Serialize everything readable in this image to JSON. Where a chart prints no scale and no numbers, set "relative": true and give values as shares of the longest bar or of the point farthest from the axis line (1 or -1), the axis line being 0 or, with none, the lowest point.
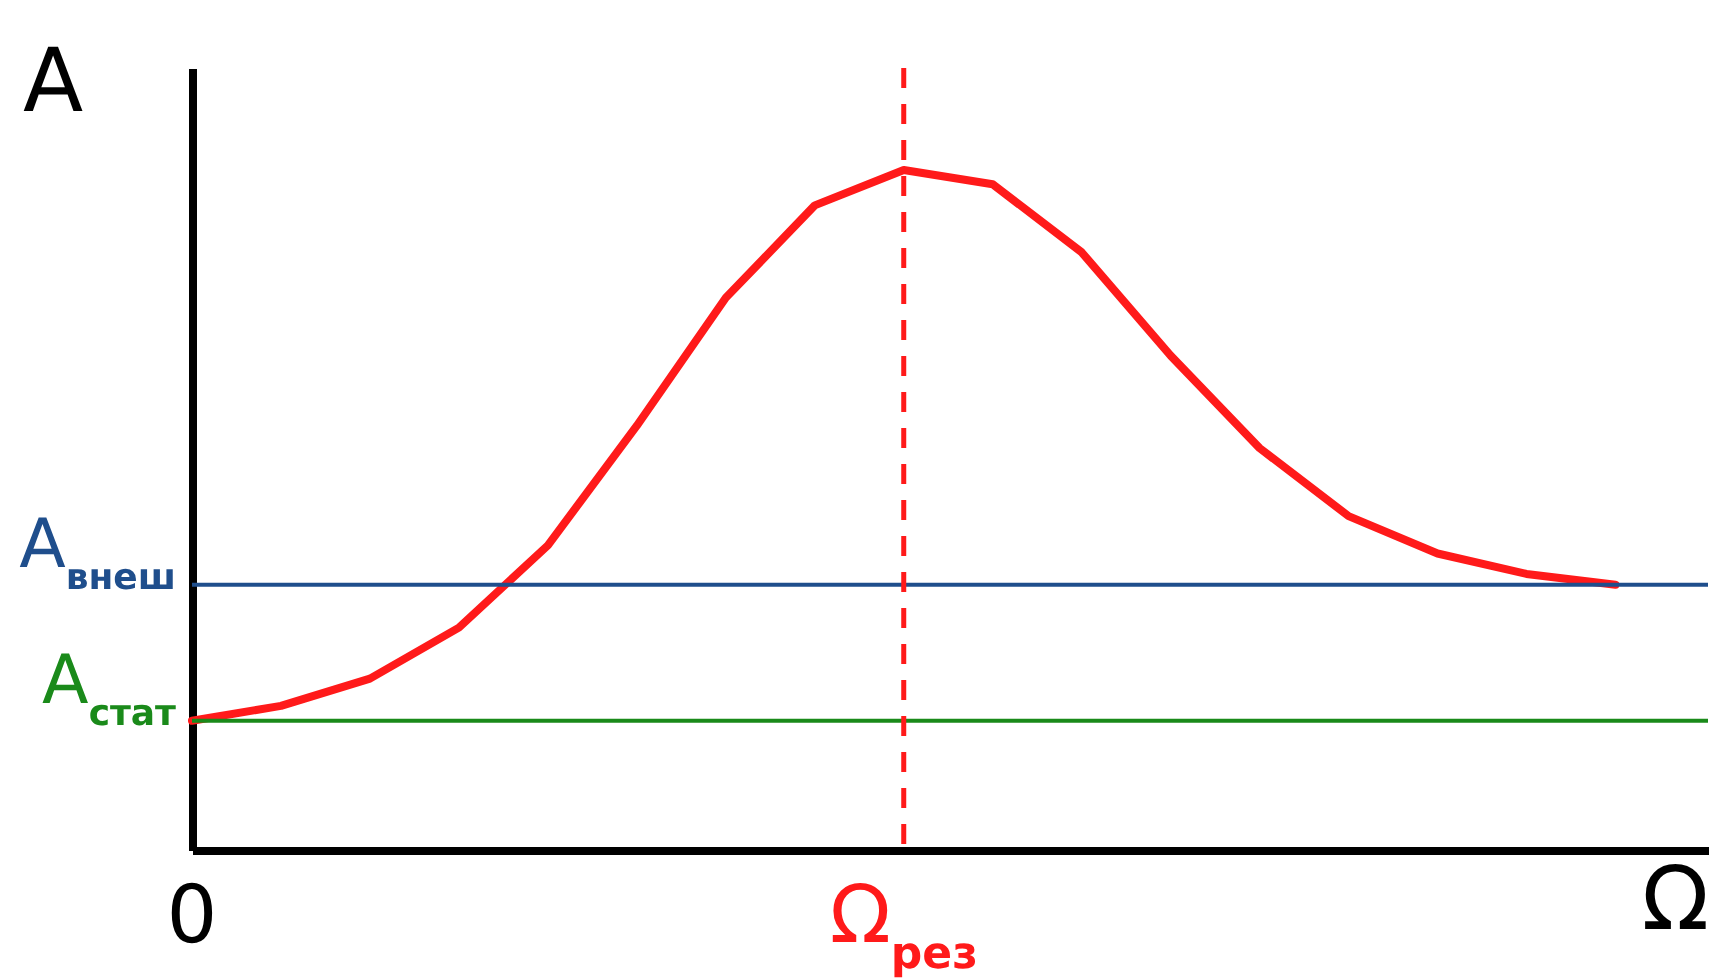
{
  "chart_data": {
    "type": "line",
    "relative": true,
    "xlabel": "Ω",
    "ylabel": "A",
    "categories": [
      "0",
      null,
      null,
      null,
      null,
      null,
      null,
      null,
      "Ω$_{рез}$",
      null,
      null,
      null,
      null,
      null,
      null,
      null,
      null
    ],
    "series": [
      {
        "color": "#ff1a1a",
        "values": [
          0.19,
          0.212,
          0.252,
          0.327,
          0.448,
          0.624,
          0.812,
          0.948,
          1,
          0.979,
          0.879,
          0.727,
          0.591,
          0.491,
          0.436,
          0.406,
          0.39
        ]
      }
    ],
    "ref_lines": [
      {
        "axis": "y",
        "value": 0.39,
        "label": "A$_{внеш}$",
        "color": "#1f4e8c"
      },
      {
        "axis": "y",
        "value": 0.19,
        "label": "A$_{стат}$",
        "color": "#1a8a1a"
      },
      {
        "axis": "x",
        "value": "Ω$_{рез}$",
        "color": "#ff1a1a",
        "line_style": "dashed"
      }
    ]
  }
}
